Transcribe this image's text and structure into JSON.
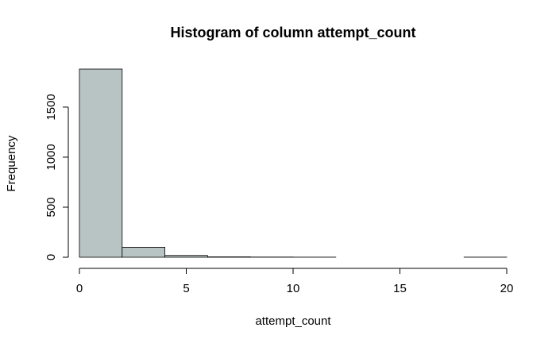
{
  "chart_data": {
    "type": "bar",
    "title": "Histogram of column attempt_count",
    "xlabel": "attempt_count",
    "ylabel": "Frequency",
    "bins": [
      {
        "x0": 0,
        "x1": 2,
        "count": 1880
      },
      {
        "x0": 2,
        "x1": 4,
        "count": 100
      },
      {
        "x0": 4,
        "x1": 6,
        "count": 18
      },
      {
        "x0": 6,
        "x1": 8,
        "count": 4
      },
      {
        "x0": 8,
        "x1": 10,
        "count": 2
      },
      {
        "x0": 10,
        "x1": 12,
        "count": 1
      },
      {
        "x0": 12,
        "x1": 14,
        "count": 0
      },
      {
        "x0": 14,
        "x1": 16,
        "count": 0
      },
      {
        "x0": 16,
        "x1": 18,
        "count": 0
      },
      {
        "x0": 18,
        "x1": 20,
        "count": 1
      }
    ],
    "xlim": [
      0,
      20
    ],
    "ylim": [
      0,
      1880
    ],
    "x_ticks": [
      0,
      5,
      10,
      15,
      20
    ],
    "y_ticks": [
      0,
      500,
      1000,
      1500
    ],
    "bar_color": "#b8c4c4",
    "grid": false
  }
}
